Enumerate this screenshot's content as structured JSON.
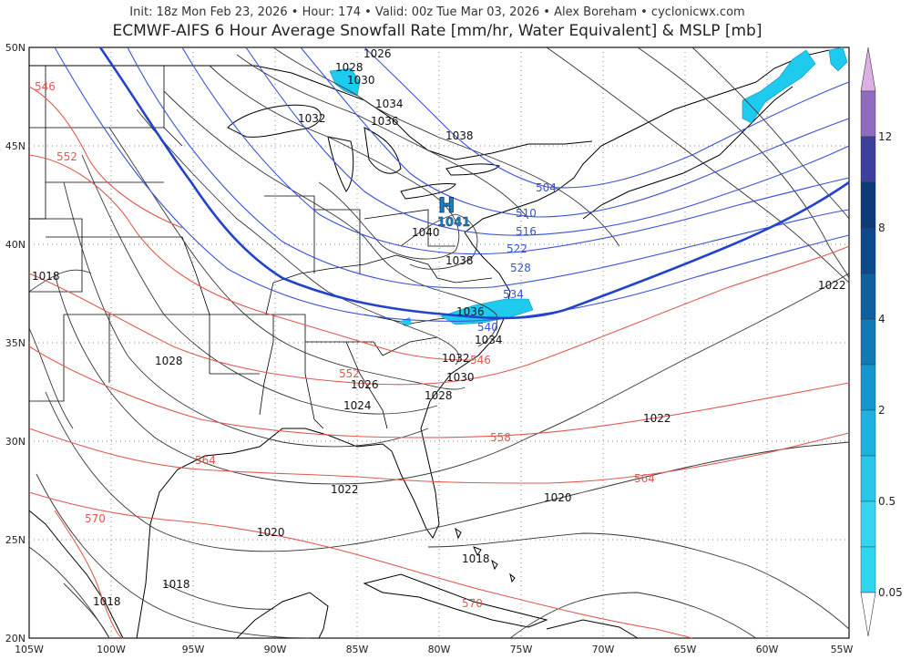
{
  "header": {
    "info_line": "Init: 18z Mon Feb 23, 2026  •  Hour: 174  •  Valid: 00z Tue Mar 03, 2026  •  Alex Boreham  •  cyclonicwx.com",
    "title": "ECMWF-AIFS 6 Hour Average Snowfall Rate [mm/hr, Water Equivalent] & MSLP [mb]"
  },
  "axes": {
    "lat_labels": [
      "50N",
      "45N",
      "40N",
      "35N",
      "30N",
      "25N",
      "20N"
    ],
    "lon_labels": [
      "105W",
      "100W",
      "95W",
      "90W",
      "85W",
      "80W",
      "75W",
      "70W",
      "65W",
      "60W",
      "55W"
    ],
    "lat_range": [
      20,
      50
    ],
    "lon_range": [
      -105,
      -55
    ]
  },
  "high_center": {
    "letter": "H",
    "value": "1041"
  },
  "mslp_labels": [
    "1026",
    "1028",
    "1030",
    "1034",
    "1032",
    "1036",
    "1038",
    "1040",
    "1038",
    "1036",
    "1034",
    "1032",
    "1030",
    "1028",
    "1026",
    "1024",
    "1028",
    "1018",
    "1022",
    "1022",
    "1022",
    "1020",
    "1020",
    "1018",
    "1018",
    "1018"
  ],
  "thickness_red_labels": [
    "546",
    "552",
    "552",
    "546",
    "558",
    "564",
    "564",
    "570",
    "570"
  ],
  "thickness_blue_labels": [
    "504",
    "510",
    "516",
    "522",
    "528",
    "534",
    "540"
  ],
  "colorbar": {
    "labels": [
      "12",
      "8",
      "4",
      "2",
      "0.5",
      "0.05"
    ],
    "colors": [
      "#d9a8e0",
      "#8e6cbf",
      "#3c3a9c",
      "#0f3f7a",
      "#0f4f8f",
      "#0e6aa5",
      "#1282bf",
      "#1aa0d6",
      "#22bde6",
      "#2fd2ef",
      "#45e1f4",
      "#2fd8f0"
    ]
  }
}
